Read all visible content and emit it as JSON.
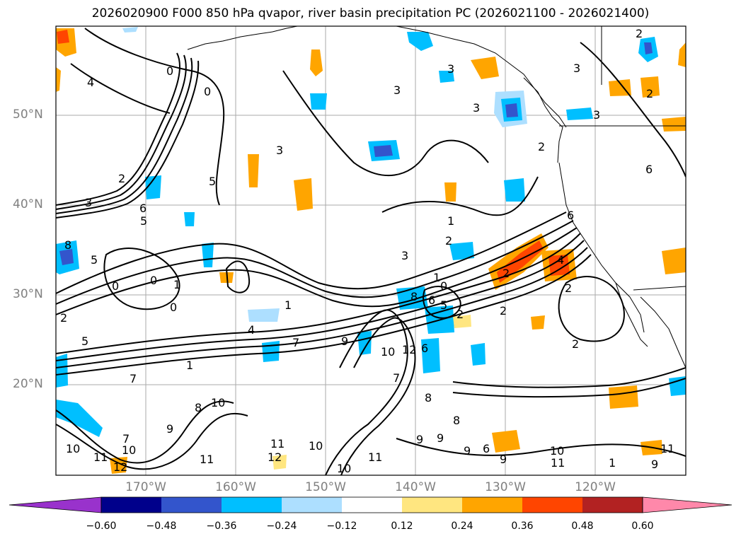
{
  "title": "2026020900 F000 850 hPa qvapor, river basin precipitation PC (2026021100 - 2026021400)",
  "lat_ticks": [
    "50°N",
    "40°N",
    "30°N",
    "20°N"
  ],
  "lon_ticks": [
    "170°W",
    "160°W",
    "150°W",
    "140°W",
    "130°W",
    "120°W"
  ],
  "colorbar": {
    "ticks": [
      "−0.60",
      "−0.48",
      "−0.36",
      "−0.24",
      "−0.12",
      "0.12",
      "0.24",
      "0.36",
      "0.48",
      "0.60"
    ],
    "colors": [
      "#9932CC",
      "#00008B",
      "#3355CC",
      "#00BFFF",
      "#ADDFFF",
      "#FFFFFF",
      "#FFE680",
      "#FFA500",
      "#FF4500",
      "#B22222",
      "#FF88AA"
    ]
  },
  "contour_labels": [
    "4",
    "3",
    "2",
    "1",
    "0",
    "5",
    "6",
    "7",
    "8",
    "9",
    "10",
    "11",
    "12"
  ],
  "anomaly_colors": {
    "deep_blue": "#3355CC",
    "blue": "#00BFFF",
    "light_blue": "#ADDFFF",
    "yellow": "#FFE680",
    "orange": "#FFA500",
    "red_orange": "#FF4500"
  }
}
